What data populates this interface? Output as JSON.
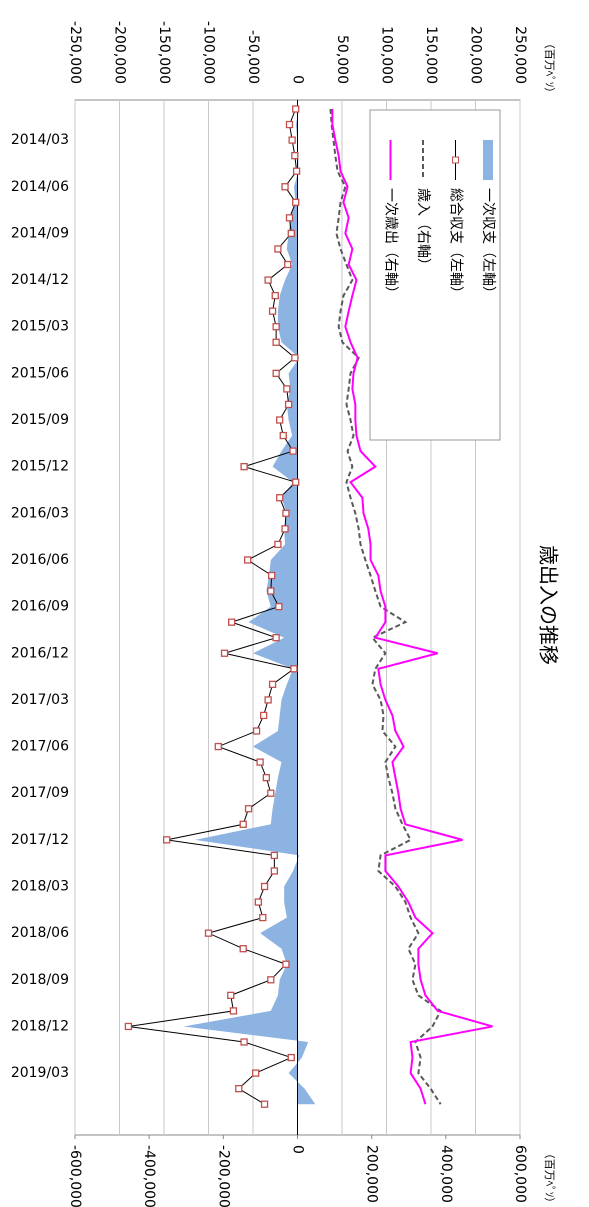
{
  "chart_data": {
    "type": "line",
    "title": "歳出入の推移",
    "y_label": "（百万ﾍﾟｿ）",
    "y2_label": "（百万ﾍﾟｿ）",
    "categories": [
      null,
      null,
      "2014/03",
      null,
      null,
      "2014/06",
      null,
      null,
      "2014/09",
      null,
      null,
      "2014/12",
      null,
      null,
      "2015/03",
      null,
      null,
      "2015/06",
      null,
      null,
      "2015/09",
      null,
      null,
      "2015/12",
      null,
      null,
      "2016/03",
      null,
      null,
      "2016/06",
      null,
      null,
      "2016/09",
      null,
      null,
      "2016/12",
      null,
      null,
      "2017/03",
      null,
      null,
      "2017/06",
      null,
      null,
      "2017/09",
      null,
      null,
      "2017/12",
      null,
      null,
      "2018/03",
      null,
      null,
      "2018/06",
      null,
      null,
      "2018/09",
      null,
      null,
      "2018/12",
      null,
      null,
      "2019/03",
      null,
      null
    ],
    "series": [
      {
        "name": "一次収支（左軸）",
        "type": "area",
        "color": "#8db3e2",
        "values": [
          2000,
          -2000,
          0,
          1000,
          1000,
          -4000,
          -2000,
          -8000,
          -10000,
          -12000,
          -6000,
          -14000,
          -20000,
          -22000,
          -22000,
          -18000,
          2000,
          -10000,
          -8000,
          -12000,
          -10000,
          -6000,
          -18000,
          -28000,
          -5000,
          -18000,
          -12000,
          -15000,
          -14000,
          -30000,
          -32000,
          -35000,
          -30000,
          -55000,
          -15000,
          -50000,
          -5000,
          -12000,
          -18000,
          -20000,
          -22000,
          -50000,
          -18000,
          -22000,
          -25000,
          -28000,
          -30000,
          -115000,
          2000,
          -5000,
          -15000,
          -15000,
          -12000,
          -42000,
          -18000,
          -12000,
          -20000,
          -22000,
          -30000,
          -128000,
          12000,
          5000,
          -10000,
          8000,
          20000
        ]
      },
      {
        "name": "総合収支（左軸）",
        "type": "line",
        "color": "#000000",
        "marker": "square",
        "marker_color": "#c0504d",
        "values": [
          -2000,
          -9000,
          -6000,
          -3000,
          -1000,
          -14000,
          -2000,
          -9000,
          -7000,
          -22000,
          -11000,
          -33000,
          -25000,
          -28000,
          -24000,
          -24000,
          -3000,
          -24000,
          -12000,
          -10000,
          -20000,
          -16000,
          -5000,
          -60000,
          -2000,
          -20000,
          -13000,
          -14000,
          -22000,
          -56000,
          -29000,
          -30000,
          -21000,
          -74000,
          -24000,
          -82000,
          -4000,
          -28000,
          -33000,
          -38000,
          -46000,
          -89000,
          -42000,
          -35000,
          -30000,
          -55000,
          -61000,
          -147000,
          -26000,
          -26000,
          -37000,
          -44000,
          -39000,
          -100000,
          -61000,
          -13000,
          -30000,
          -75000,
          -72000,
          -190000,
          -60000,
          -7000,
          -47000,
          -66000,
          -37000
        ]
      },
      {
        "name": "歳入（右軸）",
        "type": "line",
        "axis": "y2",
        "color": "#595959",
        "dash": true,
        "values": [
          89000,
          92000,
          97000,
          102000,
          108000,
          129000,
          116000,
          111000,
          105000,
          116000,
          132000,
          148000,
          124000,
          116000,
          111000,
          121000,
          165000,
          143000,
          138000,
          132000,
          143000,
          151000,
          135000,
          148000,
          132000,
          143000,
          156000,
          165000,
          170000,
          183000,
          197000,
          210000,
          224000,
          291000,
          202000,
          237000,
          210000,
          202000,
          224000,
          232000,
          229000,
          264000,
          237000,
          245000,
          256000,
          264000,
          283000,
          305000,
          224000,
          218000,
          264000,
          291000,
          305000,
          326000,
          299000,
          318000,
          310000,
          326000,
          386000,
          364000,
          318000,
          332000,
          326000,
          359000,
          386000
        ]
      },
      {
        "name": "一次歳出（右軸）",
        "type": "line",
        "axis": "y2",
        "color": "#ff00ff",
        "values": [
          94000,
          94000,
          102000,
          111000,
          116000,
          135000,
          124000,
          138000,
          129000,
          148000,
          138000,
          159000,
          148000,
          138000,
          129000,
          143000,
          162000,
          151000,
          148000,
          156000,
          156000,
          159000,
          170000,
          210000,
          143000,
          175000,
          178000,
          191000,
          197000,
          197000,
          218000,
          224000,
          237000,
          237000,
          210000,
          378000,
          218000,
          224000,
          237000,
          256000,
          264000,
          286000,
          256000,
          264000,
          272000,
          278000,
          291000,
          445000,
          237000,
          237000,
          272000,
          299000,
          318000,
          364000,
          326000,
          326000,
          332000,
          345000,
          378000,
          526000,
          305000,
          310000,
          305000,
          332000,
          345000
        ]
      }
    ],
    "ylim": [
      -250000,
      250000
    ],
    "yticks": [
      {
        "value": -250000,
        "label": "-250,000"
      },
      {
        "value": -200000,
        "label": "-200,000"
      },
      {
        "value": -150000,
        "label": "-150,000"
      },
      {
        "value": -100000,
        "label": "-100,000"
      },
      {
        "value": -50000,
        "label": "-50,000"
      },
      0,
      {
        "value": 50000,
        "label": "50,000"
      },
      {
        "value": 100000,
        "label": "100,000"
      },
      {
        "value": 150000,
        "label": "150,000"
      },
      {
        "value": 200000,
        "label": "200,000"
      },
      {
        "value": 250000,
        "label": "250,000"
      }
    ],
    "y2lim": [
      -600000,
      600000
    ],
    "y2ticks": [
      {
        "value": -600000,
        "label": "-600,000"
      },
      {
        "value": -400000,
        "label": "-400,000"
      },
      {
        "value": -200000,
        "label": "-200,000"
      },
      0,
      {
        "value": 200000,
        "label": "200,000"
      },
      {
        "value": 400000,
        "label": "400,000"
      },
      {
        "value": 600000,
        "label": "600,000"
      }
    ],
    "grid": true,
    "legend": "upper left"
  }
}
